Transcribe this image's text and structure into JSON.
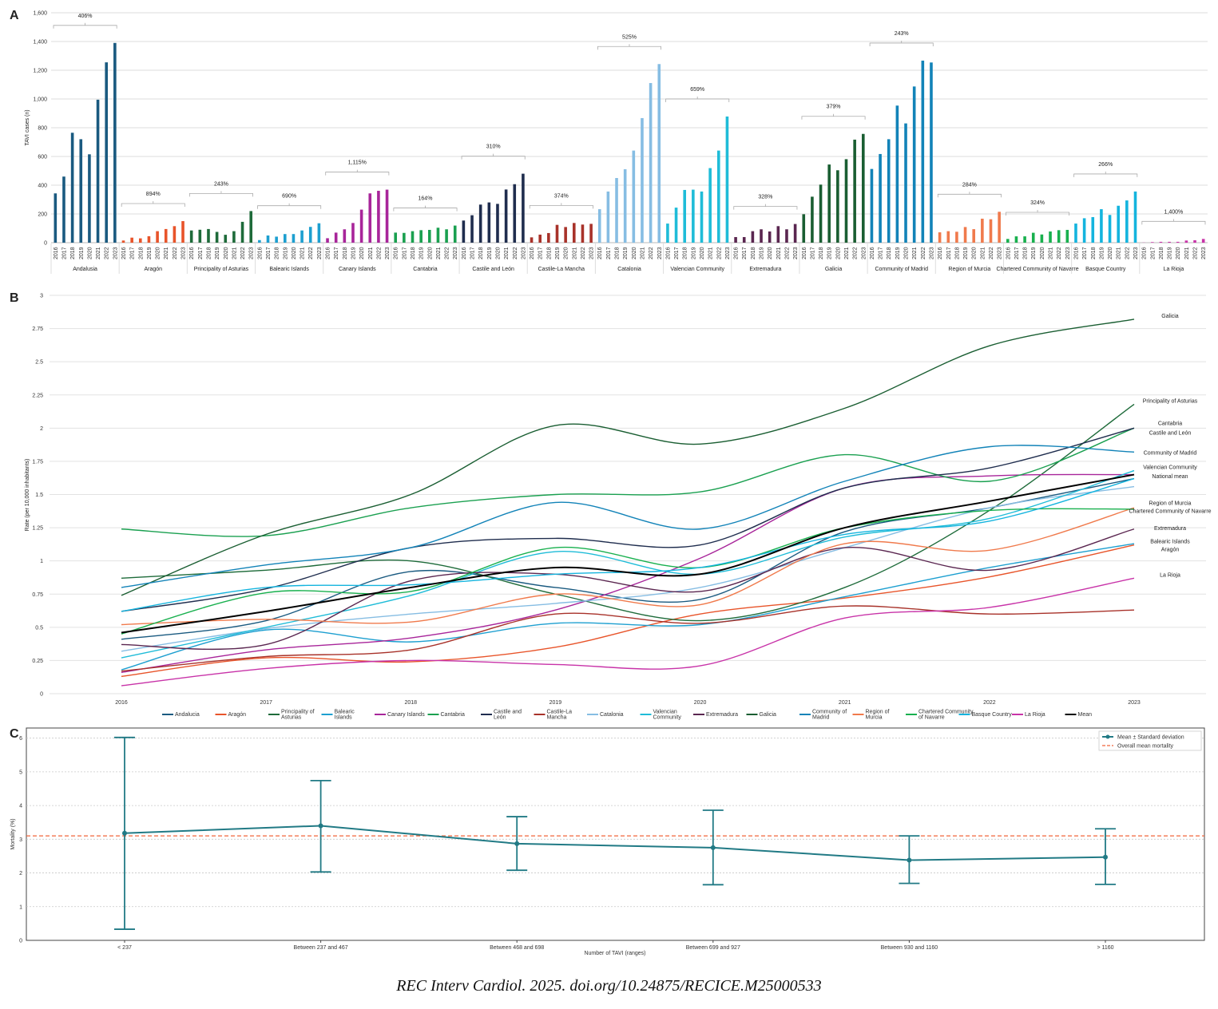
{
  "footer": "REC Interv Cardiol. 2025. doi.org/10.24875/RECICE.M25000533",
  "chart_data": [
    {
      "panel": "A",
      "type": "bar",
      "ylabel": "TAVI cases (n)",
      "ylim": [
        0,
        1600
      ],
      "yticks": [
        0,
        200,
        400,
        600,
        800,
        1000,
        1200,
        1400,
        1600
      ],
      "ytick_labels": [
        "0",
        "200",
        "400",
        "600",
        "800",
        "1,000",
        "1,200",
        "1,400",
        "1,600"
      ],
      "grid": true,
      "years": [
        "2016",
        "2017",
        "2018",
        "2019",
        "2020",
        "2021",
        "2022",
        "2023"
      ],
      "groups": [
        {
          "name": "Andalusia",
          "color": "#1a5a80",
          "growth": "406%",
          "values": [
            343,
            460,
            765,
            720,
            615,
            995,
            1255,
            1390
          ]
        },
        {
          "name": "Aragón",
          "color": "#e8542a",
          "growth": "894%",
          "values": [
            15,
            35,
            30,
            45,
            80,
            95,
            115,
            150
          ]
        },
        {
          "name": "Principality of Asturias",
          "color": "#1e6b3a",
          "growth": "243%",
          "values": [
            85,
            90,
            95,
            75,
            55,
            80,
            145,
            220
          ]
        },
        {
          "name": "Balearic Islands",
          "color": "#1d9fd0",
          "growth": "690%",
          "values": [
            18,
            50,
            42,
            60,
            60,
            85,
            110,
            135
          ]
        },
        {
          "name": "Canary Islands",
          "color": "#a8259a",
          "growth": "1,115%",
          "values": [
            31,
            70,
            93,
            137,
            230,
            343,
            361,
            369
          ]
        },
        {
          "name": "Cantabria",
          "color": "#1aa050",
          "growth": "164%",
          "values": [
            70,
            68,
            80,
            87,
            89,
            104,
            93,
            119
          ]
        },
        {
          "name": "Castile and León",
          "color": "#1f2d4e",
          "growth": "310%",
          "values": [
            154,
            191,
            265,
            280,
            270,
            370,
            407,
            480
          ]
        },
        {
          "name": "Castile-La Mancha",
          "color": "#a8322a",
          "growth": "374%",
          "values": [
            37,
            56,
            67,
            124,
            109,
            137,
            126,
            131
          ]
        },
        {
          "name": "Catalonia",
          "color": "#86bde3",
          "growth": "525%",
          "values": [
            233,
            356,
            450,
            511,
            641,
            867,
            1111,
            1243
          ]
        },
        {
          "name": "Valencian Community",
          "color": "#1fbcd8",
          "growth": "659%",
          "values": [
            133,
            244,
            367,
            369,
            356,
            519,
            641,
            878
          ]
        },
        {
          "name": "Extremadura",
          "color": "#5a2650",
          "growth": "328%",
          "values": [
            39,
            39,
            80,
            93,
            78,
            115,
            93,
            130
          ]
        },
        {
          "name": "Galicia",
          "color": "#1a5e32",
          "growth": "379%",
          "values": [
            198,
            320,
            404,
            544,
            504,
            581,
            717,
            757
          ]
        },
        {
          "name": "Community of Madrid",
          "color": "#1283b8",
          "growth": "243%",
          "values": [
            513,
            617,
            720,
            954,
            830,
            1087,
            1267,
            1254
          ]
        },
        {
          "name": "Region of Murcia",
          "color": "#f07a4c",
          "growth": "284%",
          "values": [
            72,
            80,
            76,
            109,
            94,
            167,
            163,
            215
          ]
        },
        {
          "name": "Chartered Community of Navarre",
          "color": "#18b04e",
          "growth": "324%",
          "values": [
            26,
            44,
            44,
            69,
            57,
            78,
            87,
            89
          ]
        },
        {
          "name": "Basque Country",
          "color": "#14b4de",
          "growth": "266%",
          "values": [
            133,
            170,
            178,
            233,
            193,
            257,
            294,
            356
          ]
        },
        {
          "name": "La Rioja",
          "color": "#c833a8",
          "growth": "1,400%",
          "values": [
            1,
            4,
            6,
            6,
            6,
            15,
            17,
            26
          ]
        }
      ]
    },
    {
      "panel": "B",
      "type": "line",
      "ylabel": "Rate (per 10,000 inhabitants)",
      "xlabel": "",
      "x": [
        "2016",
        "2017",
        "2018",
        "2019",
        "2020",
        "2021",
        "2022",
        "2023"
      ],
      "ylim": [
        0,
        3
      ],
      "yticks": [
        0,
        0.25,
        0.5,
        0.75,
        1,
        1.25,
        1.5,
        1.75,
        2,
        2.25,
        2.5,
        2.75,
        3
      ],
      "ytick_labels": [
        "0",
        "0.25",
        "0.5",
        "0.75",
        "1",
        "1.25",
        "1.5",
        "1.75",
        "2",
        "2.25",
        "2.5",
        "2.75",
        "3"
      ],
      "grid": true,
      "legend_position": "bottom",
      "series": [
        {
          "name": "Andalucia",
          "legend": "Andalucia",
          "color": "#1a5a80",
          "values": [
            0.41,
            0.55,
            0.92,
            0.8,
            0.71,
            1.22,
            1.4,
            1.62
          ]
        },
        {
          "name": "Aragón",
          "legend": "Aragón",
          "color": "#e8542a",
          "values": [
            0.13,
            0.27,
            0.24,
            0.35,
            0.6,
            0.72,
            0.88,
            1.12
          ]
        },
        {
          "name": "Principality of Asturias",
          "legend": "Principality of Asturias",
          "color": "#1e6b3a",
          "values": [
            0.87,
            0.93,
            1.0,
            0.75,
            0.55,
            0.8,
            1.38,
            2.18
          ]
        },
        {
          "name": "Balearic Islands",
          "legend": "Balearic Islands",
          "color": "#1d9fd0",
          "values": [
            0.18,
            0.48,
            0.39,
            0.53,
            0.52,
            0.73,
            0.95,
            1.13
          ]
        },
        {
          "name": "Canary Islands",
          "legend": "Canary Islands",
          "color": "#a8259a",
          "values": [
            0.16,
            0.33,
            0.42,
            0.63,
            1.02,
            1.55,
            1.64,
            1.65
          ]
        },
        {
          "name": "Cantabria",
          "legend": "Cantabria",
          "color": "#1aa050",
          "values": [
            1.24,
            1.19,
            1.4,
            1.5,
            1.52,
            1.8,
            1.6,
            2.0
          ]
        },
        {
          "name": "Castile and León",
          "legend": "Castile and León",
          "color": "#1f2d4e",
          "values": [
            0.62,
            0.79,
            1.1,
            1.17,
            1.12,
            1.55,
            1.7,
            2.0
          ]
        },
        {
          "name": "Castile-La Mancha",
          "legend": "Castile-La Mancha",
          "color": "#a8322a",
          "values": [
            0.17,
            0.28,
            0.33,
            0.6,
            0.53,
            0.66,
            0.6,
            0.63
          ]
        },
        {
          "name": "Catalonia",
          "legend": "Catalonia",
          "color": "#86bde3",
          "values": [
            0.32,
            0.49,
            0.6,
            0.68,
            0.8,
            1.1,
            1.4,
            1.56
          ]
        },
        {
          "name": "Valencian Community",
          "legend": "Valencian Community",
          "color": "#1fbcd8",
          "values": [
            0.27,
            0.5,
            0.74,
            1.07,
            0.9,
            1.18,
            1.32,
            1.68
          ]
        },
        {
          "name": "Extremadura",
          "legend": "Extremadura",
          "color": "#5a2650",
          "values": [
            0.37,
            0.37,
            0.85,
            0.9,
            0.77,
            1.1,
            0.93,
            1.24
          ]
        },
        {
          "name": "Galicia",
          "legend": "Galicia",
          "color": "#1a5e32",
          "values": [
            0.74,
            1.2,
            1.5,
            2.02,
            1.88,
            2.15,
            2.62,
            2.82
          ]
        },
        {
          "name": "Community of Madrid",
          "legend": "Community of Madrid",
          "color": "#1283b8",
          "values": [
            0.8,
            0.97,
            1.1,
            1.44,
            1.24,
            1.6,
            1.86,
            1.82
          ]
        },
        {
          "name": "Region of Murcia",
          "legend": "Region of Murcia",
          "color": "#f07a4c",
          "values": [
            0.52,
            0.56,
            0.54,
            0.75,
            0.67,
            1.13,
            1.08,
            1.4
          ]
        },
        {
          "name": "Chartered Community of Navarre",
          "legend": "Chartered Community of Navarre",
          "color": "#18b04e",
          "values": [
            0.45,
            0.76,
            0.77,
            1.1,
            0.95,
            1.25,
            1.38,
            1.39
          ]
        },
        {
          "name": "Basque Country",
          "legend": "Basque Country",
          "color": "#14b4de",
          "values": [
            0.62,
            0.8,
            0.82,
            0.9,
            0.95,
            1.2,
            1.3,
            1.62
          ]
        },
        {
          "name": "La Rioja",
          "legend": "La Rioja",
          "color": "#c833a8",
          "values": [
            0.06,
            0.19,
            0.25,
            0.22,
            0.21,
            0.57,
            0.65,
            0.87
          ]
        },
        {
          "name": "Mean",
          "legend": "Mean",
          "color": "#000000",
          "values": [
            0.46,
            0.62,
            0.8,
            0.95,
            0.9,
            1.25,
            1.45,
            1.65
          ]
        }
      ],
      "end_labels": [
        {
          "text": "Galicia",
          "y": 2.85
        },
        {
          "text": "Principality of Asturias",
          "y": 2.21
        },
        {
          "text": "Cantabria",
          "y": 2.04
        },
        {
          "text": "Castile and León",
          "y": 1.97
        },
        {
          "text": "Community of Madrid",
          "y": 1.82
        },
        {
          "text": "Valencian Community",
          "y": 1.71
        },
        {
          "text": "National mean",
          "y": 1.64
        },
        {
          "text": "Region of Murcia",
          "y": 1.44
        },
        {
          "text": "Chartered Community of Navarre",
          "y": 1.38
        },
        {
          "text": "Extremadura",
          "y": 1.25
        },
        {
          "text": "Balearic Islands",
          "y": 1.15
        },
        {
          "text": "Aragón",
          "y": 1.09
        },
        {
          "text": "La Rioja",
          "y": 0.9
        }
      ]
    },
    {
      "panel": "C",
      "type": "line",
      "xlabel": "Number of TAVI (ranges)",
      "ylabel": "Mortality (%)",
      "ylim": [
        0,
        6.3
      ],
      "yticks": [
        0,
        1,
        2,
        3,
        4,
        5,
        6
      ],
      "ytick_labels": [
        "0",
        "1",
        "2",
        "3",
        "4",
        "5",
        "6"
      ],
      "grid": true,
      "legend_position": "top-right",
      "categories": [
        "< 237",
        "Between 237 and 467",
        "Between 468 and 698",
        "Between 699 and 927",
        "Between 930 and 1160",
        "> 1160"
      ],
      "series": [
        {
          "name": "Mean ± Standard deviation",
          "color": "#217a85",
          "values": [
            3.18,
            3.4,
            2.87,
            2.75,
            2.38,
            2.47
          ],
          "lower": [
            0.33,
            2.03,
            2.08,
            1.65,
            1.69,
            1.66
          ],
          "upper": [
            6.02,
            4.74,
            3.67,
            3.86,
            3.1,
            3.31
          ]
        }
      ],
      "reference_line": {
        "name": "Overall mean mortality",
        "value": 3.1,
        "color": "#f0643a",
        "style": "dashed"
      }
    }
  ]
}
